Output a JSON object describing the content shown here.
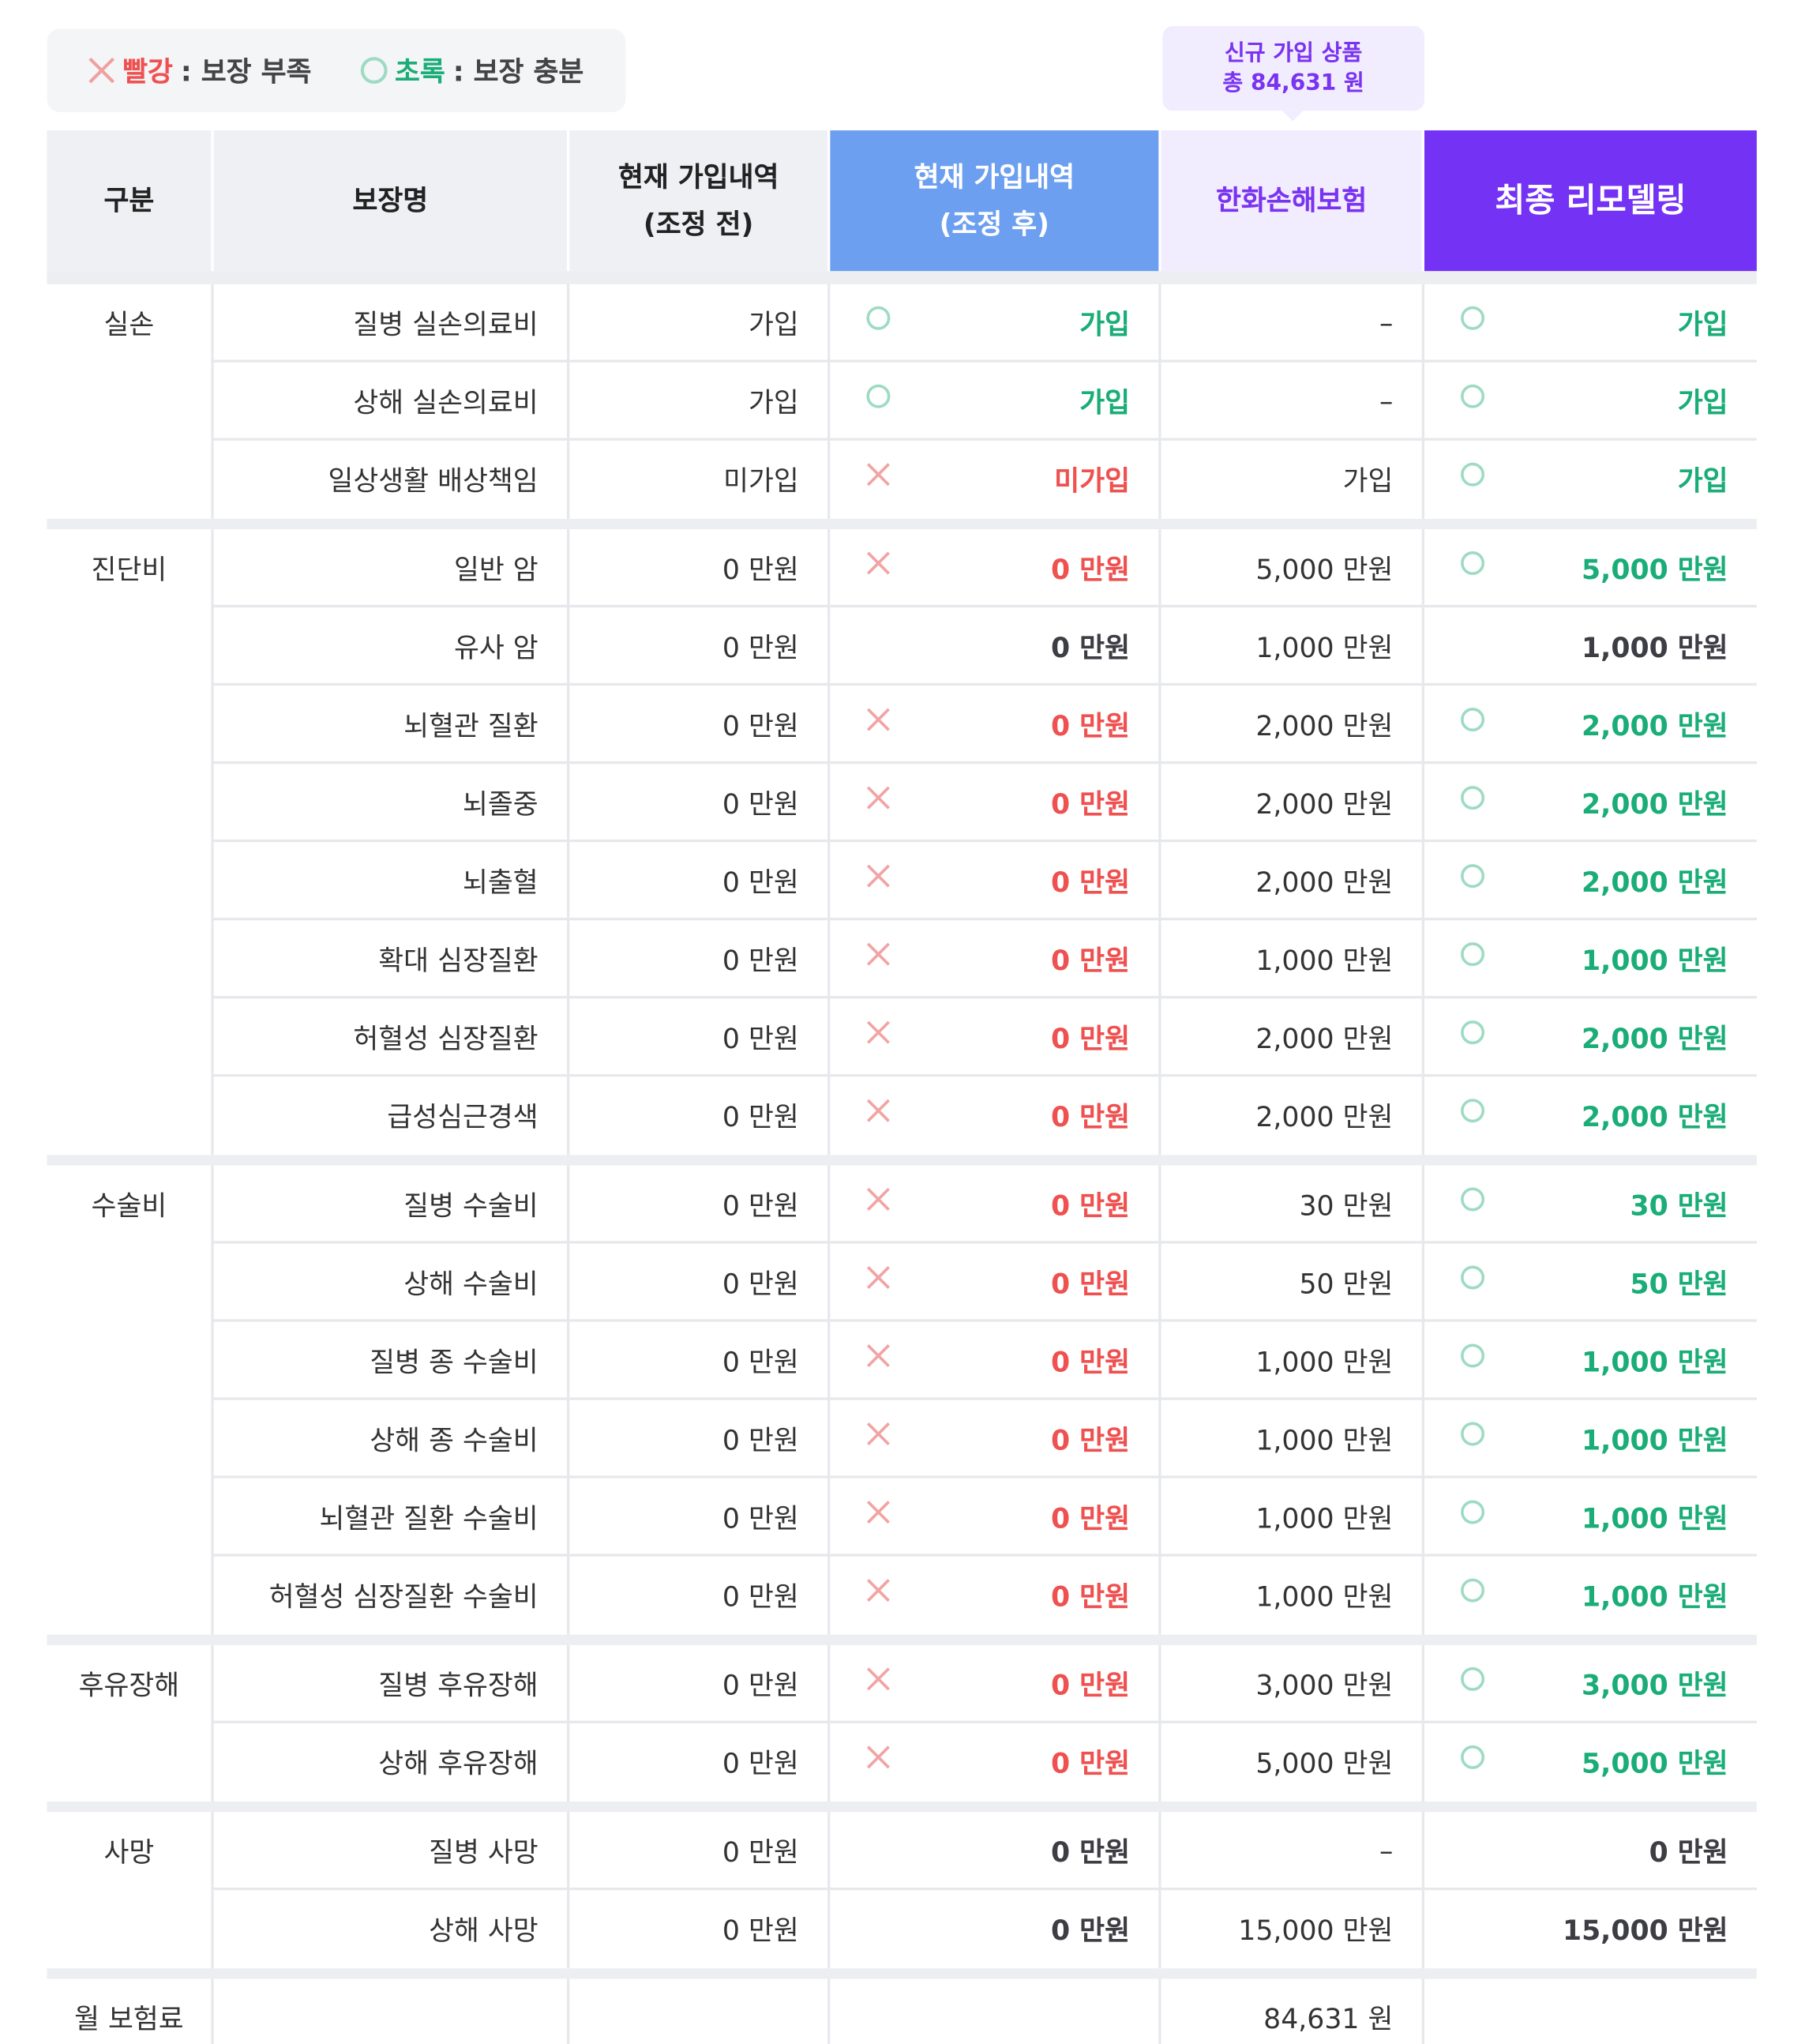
{
  "legend": {
    "red_label": "빨강",
    "red_text": ": 보장 부족",
    "green_label": "초록",
    "green_text": ": 보장 충분"
  },
  "badge": {
    "line1": "신규 가입 상품",
    "line2": "총 84,631 원"
  },
  "table": {
    "headers": [
      "구분",
      "보장명",
      "현재 가입내역\n(조정 전)",
      "현재 가입내역\n(조정 후)",
      "한화손해보험",
      "최종 리모델링"
    ],
    "groups": [
      {
        "category": "실손",
        "rows": [
          {
            "name": "질병 실손의료비",
            "current": "가입",
            "adjusted": "가입",
            "adjusted_status": "o",
            "hanwha": "–",
            "final": "가입",
            "final_status": "o"
          },
          {
            "name": "상해 실손의료비",
            "current": "가입",
            "adjusted": "가입",
            "adjusted_status": "o",
            "hanwha": "–",
            "final": "가입",
            "final_status": "o"
          },
          {
            "name": "일상생활 배상책임",
            "current": "미가입",
            "adjusted": "미가입",
            "adjusted_status": "x",
            "hanwha": "가입",
            "final": "가입",
            "final_status": "o"
          }
        ]
      },
      {
        "category": "진단비",
        "rows": [
          {
            "name": "일반 암",
            "current": "0 만원",
            "adjusted": "0 만원",
            "adjusted_status": "x",
            "hanwha": "5,000 만원",
            "final": "5,000 만원",
            "final_status": "o"
          },
          {
            "name": "유사 암",
            "current": "0 만원",
            "adjusted": "0 만원",
            "adjusted_status": null,
            "hanwha": "1,000 만원",
            "final": "1,000 만원",
            "final_status": null
          },
          {
            "name": "뇌혈관 질환",
            "current": "0 만원",
            "adjusted": "0 만원",
            "adjusted_status": "x",
            "hanwha": "2,000 만원",
            "final": "2,000 만원",
            "final_status": "o"
          },
          {
            "name": "뇌졸중",
            "current": "0 만원",
            "adjusted": "0 만원",
            "adjusted_status": "x",
            "hanwha": "2,000 만원",
            "final": "2,000 만원",
            "final_status": "o"
          },
          {
            "name": "뇌출혈",
            "current": "0 만원",
            "adjusted": "0 만원",
            "adjusted_status": "x",
            "hanwha": "2,000 만원",
            "final": "2,000 만원",
            "final_status": "o"
          },
          {
            "name": "확대 심장질환",
            "current": "0 만원",
            "adjusted": "0 만원",
            "adjusted_status": "x",
            "hanwha": "1,000 만원",
            "final": "1,000 만원",
            "final_status": "o"
          },
          {
            "name": "허혈성 심장질환",
            "current": "0 만원",
            "adjusted": "0 만원",
            "adjusted_status": "x",
            "hanwha": "2,000 만원",
            "final": "2,000 만원",
            "final_status": "o"
          },
          {
            "name": "급성심근경색",
            "current": "0 만원",
            "adjusted": "0 만원",
            "adjusted_status": "x",
            "hanwha": "2,000 만원",
            "final": "2,000 만원",
            "final_status": "o"
          }
        ]
      },
      {
        "category": "수술비",
        "rows": [
          {
            "name": "질병 수술비",
            "current": "0 만원",
            "adjusted": "0 만원",
            "adjusted_status": "x",
            "hanwha": "30 만원",
            "final": "30 만원",
            "final_status": "o"
          },
          {
            "name": "상해 수술비",
            "current": "0 만원",
            "adjusted": "0 만원",
            "adjusted_status": "x",
            "hanwha": "50 만원",
            "final": "50 만원",
            "final_status": "o"
          },
          {
            "name": "질병 종 수술비",
            "current": "0 만원",
            "adjusted": "0 만원",
            "adjusted_status": "x",
            "hanwha": "1,000 만원",
            "final": "1,000 만원",
            "final_status": "o"
          },
          {
            "name": "상해 종 수술비",
            "current": "0 만원",
            "adjusted": "0 만원",
            "adjusted_status": "x",
            "hanwha": "1,000 만원",
            "final": "1,000 만원",
            "final_status": "o"
          },
          {
            "name": "뇌혈관 질환 수술비",
            "current": "0 만원",
            "adjusted": "0 만원",
            "adjusted_status": "x",
            "hanwha": "1,000 만원",
            "final": "1,000 만원",
            "final_status": "o"
          },
          {
            "name": "허혈성 심장질환 수술비",
            "current": "0 만원",
            "adjusted": "0 만원",
            "adjusted_status": "x",
            "hanwha": "1,000 만원",
            "final": "1,000 만원",
            "final_status": "o"
          }
        ]
      },
      {
        "category": "후유장해",
        "rows": [
          {
            "name": "질병 후유장해",
            "current": "0 만원",
            "adjusted": "0 만원",
            "adjusted_status": "x",
            "hanwha": "3,000 만원",
            "final": "3,000 만원",
            "final_status": "o"
          },
          {
            "name": "상해 후유장해",
            "current": "0 만원",
            "adjusted": "0 만원",
            "adjusted_status": "x",
            "hanwha": "5,000 만원",
            "final": "5,000 만원",
            "final_status": "o"
          }
        ]
      },
      {
        "category": "사망",
        "rows": [
          {
            "name": "질병 사망",
            "current": "0 만원",
            "adjusted": "0 만원",
            "adjusted_status": null,
            "hanwha": "–",
            "final": "0 만원",
            "final_status": null
          },
          {
            "name": "상해 사망",
            "current": "0 만원",
            "adjusted": "0 만원",
            "adjusted_status": null,
            "hanwha": "15,000 만원",
            "final": "15,000 만원",
            "final_status": null
          }
        ]
      }
    ],
    "footer": {
      "label": "월 보험료",
      "hanwha": "84,631 원"
    }
  }
}
